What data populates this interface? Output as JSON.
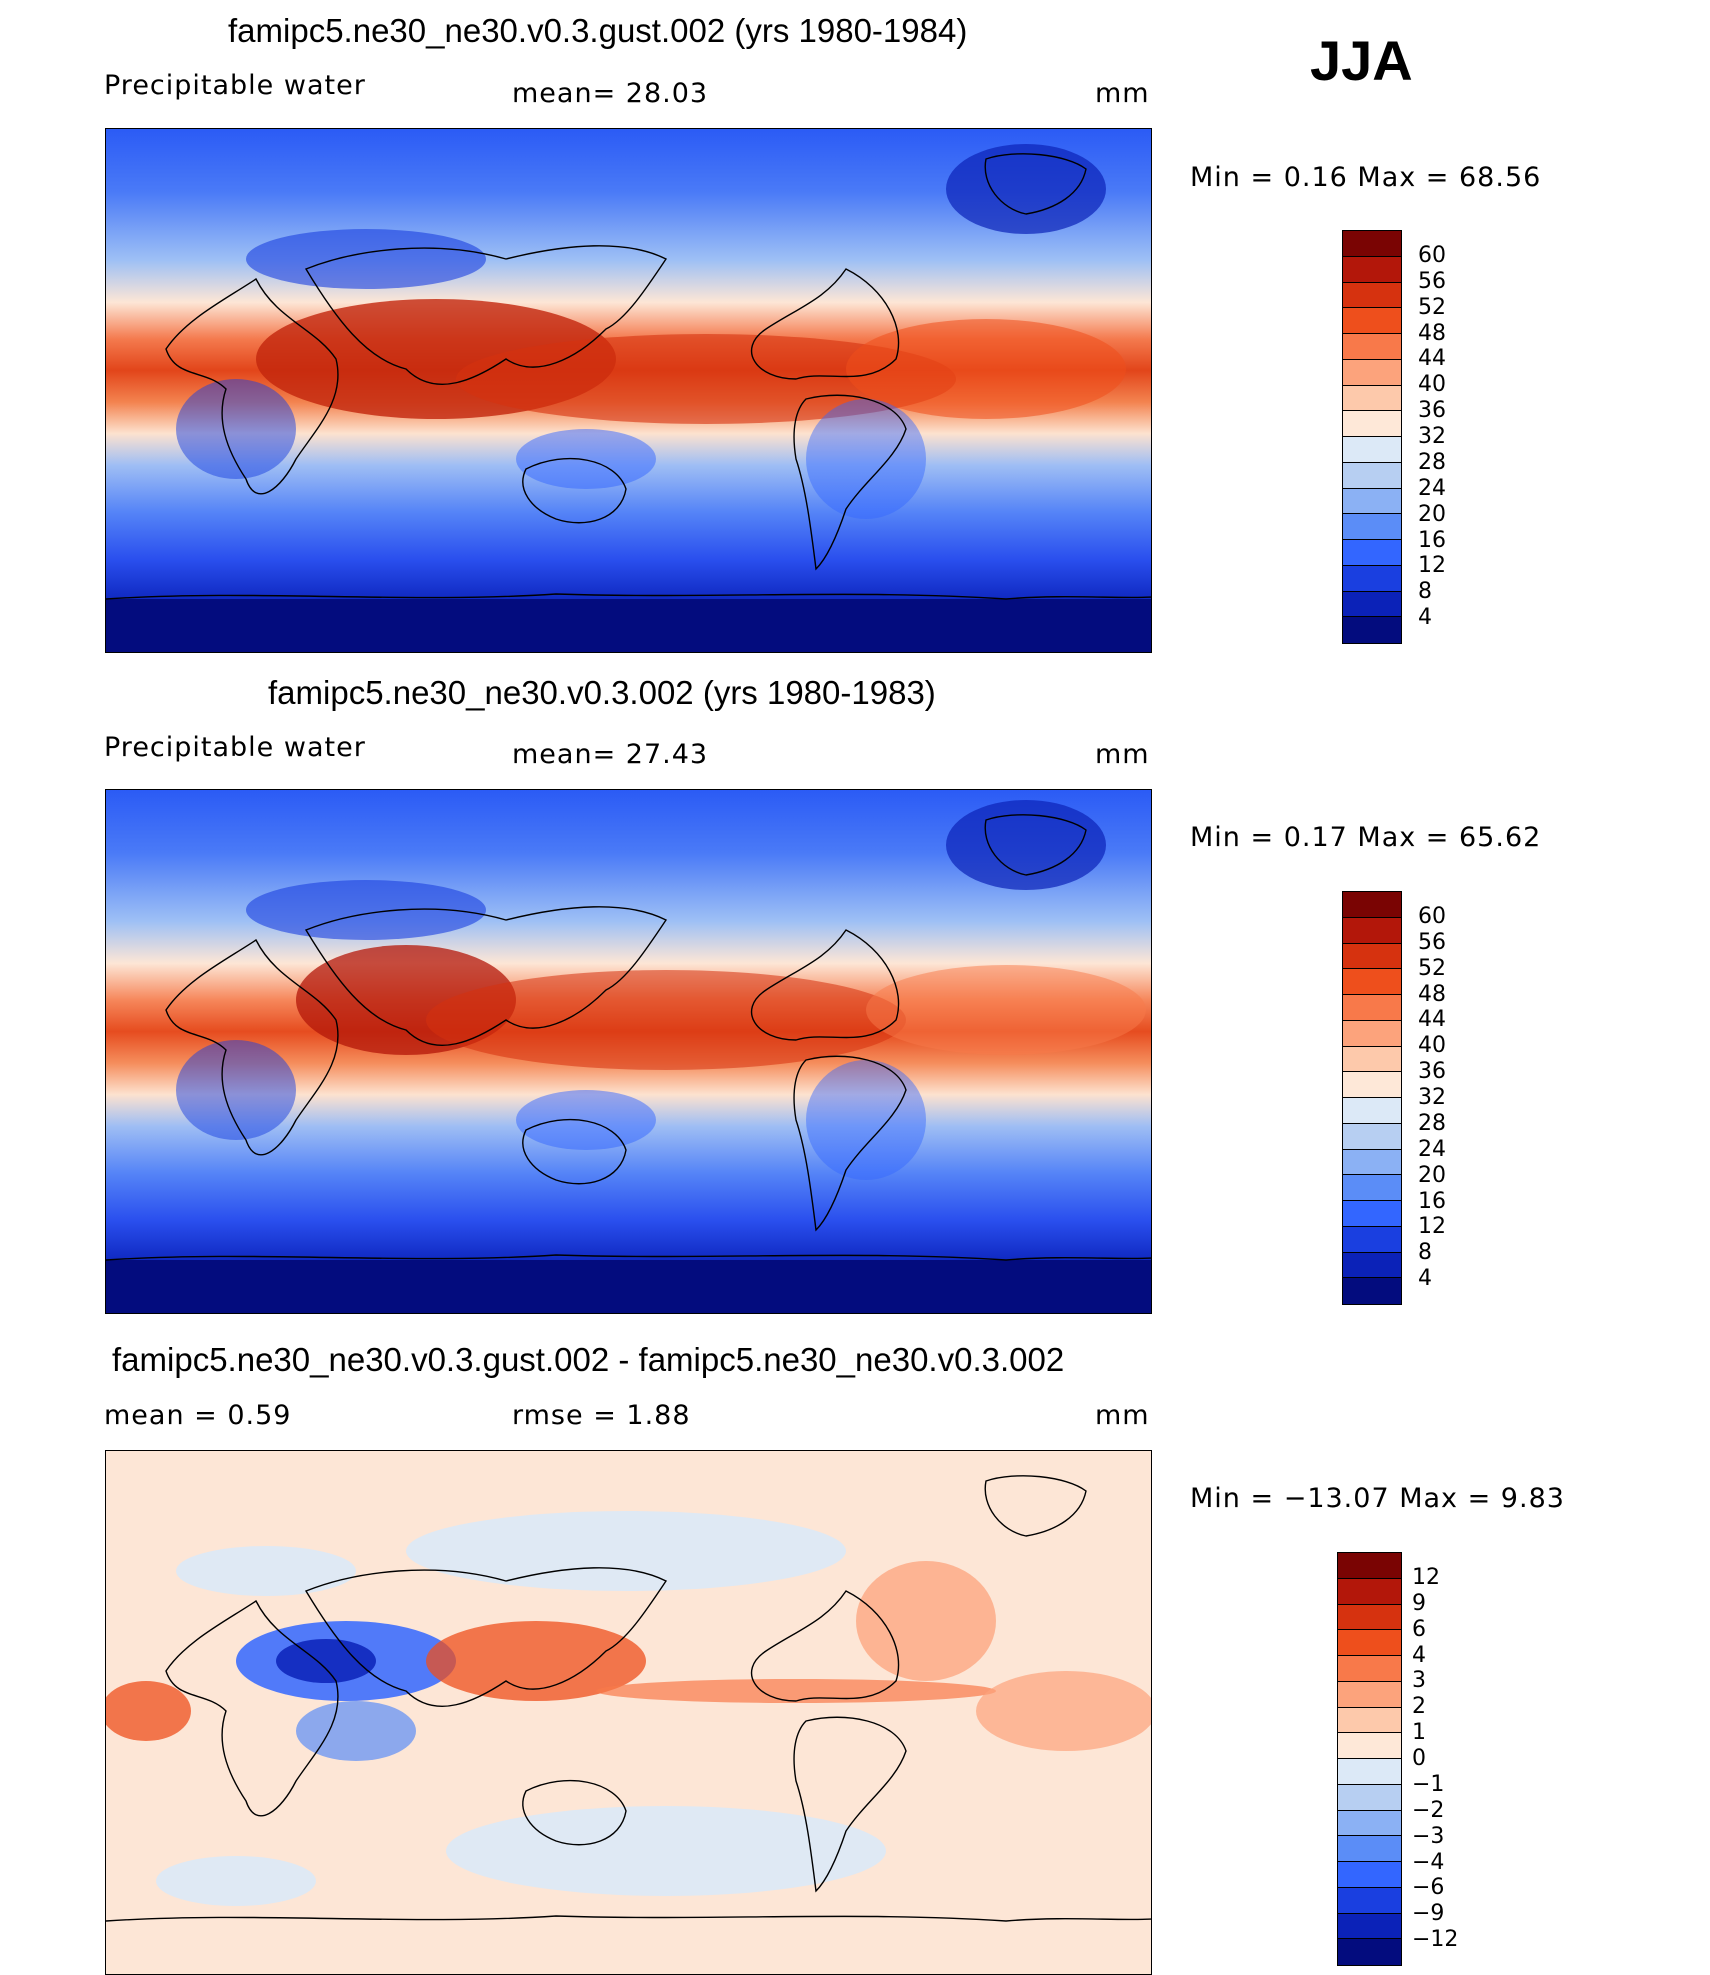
{
  "season": "JJA",
  "panels": [
    {
      "title": "famipc5.ne30_ne30.v0.3.gust.002 (yrs 1980-1984)",
      "left_label": "Precipitable  water",
      "center_label": "mean=   28.03",
      "units": "mm",
      "minmax": "Min  =     0.16  Max  =    68.56",
      "colorbar_labels": [
        "60",
        "56",
        "52",
        "48",
        "44",
        "40",
        "36",
        "32",
        "28",
        "24",
        "20",
        "16",
        "12",
        "8",
        "4"
      ],
      "colorbar_colors": [
        "#7a0403",
        "#b3170a",
        "#d6320f",
        "#ee4f1c",
        "#f8794a",
        "#fca37c",
        "#fdc9ab",
        "#fee8d8",
        "#dce9f7",
        "#b7cff2",
        "#8bb1f4",
        "#5b8df7",
        "#3366ff",
        "#1a3fe0",
        "#0b22b8",
        "#030c7e"
      ]
    },
    {
      "title": "famipc5.ne30_ne30.v0.3.002 (yrs 1980-1983)",
      "left_label": "Precipitable  water",
      "center_label": "mean=   27.43",
      "units": "mm",
      "minmax": "Min  =     0.17  Max  =    65.62",
      "colorbar_labels": [
        "60",
        "56",
        "52",
        "48",
        "44",
        "40",
        "36",
        "32",
        "28",
        "24",
        "20",
        "16",
        "12",
        "8",
        "4"
      ],
      "colorbar_colors": [
        "#7a0403",
        "#b3170a",
        "#d6320f",
        "#ee4f1c",
        "#f8794a",
        "#fca37c",
        "#fdc9ab",
        "#fee8d8",
        "#dce9f7",
        "#b7cff2",
        "#8bb1f4",
        "#5b8df7",
        "#3366ff",
        "#1a3fe0",
        "#0b22b8",
        "#030c7e"
      ]
    },
    {
      "title": "famipc5.ne30_ne30.v0.3.gust.002 - famipc5.ne30_ne30.v0.3.002",
      "left_label": "mean  =      0.59",
      "center_label": "rmse  =     1.88",
      "units": "mm",
      "minmax": "Min  = −13.07  Max  =      9.83",
      "colorbar_labels": [
        "12",
        "9",
        "6",
        "4",
        "3",
        "2",
        "1",
        "0",
        "−1",
        "−2",
        "−3",
        "−4",
        "−6",
        "−9",
        "−12"
      ],
      "colorbar_colors": [
        "#7a0403",
        "#b3170a",
        "#d6320f",
        "#ee4f1c",
        "#f8794a",
        "#fca37c",
        "#fdc9ab",
        "#fee8d8",
        "#dce9f7",
        "#b7cff2",
        "#8bb1f4",
        "#5b8df7",
        "#3366ff",
        "#1a3fe0",
        "#0b22b8",
        "#030c7e"
      ]
    }
  ]
}
